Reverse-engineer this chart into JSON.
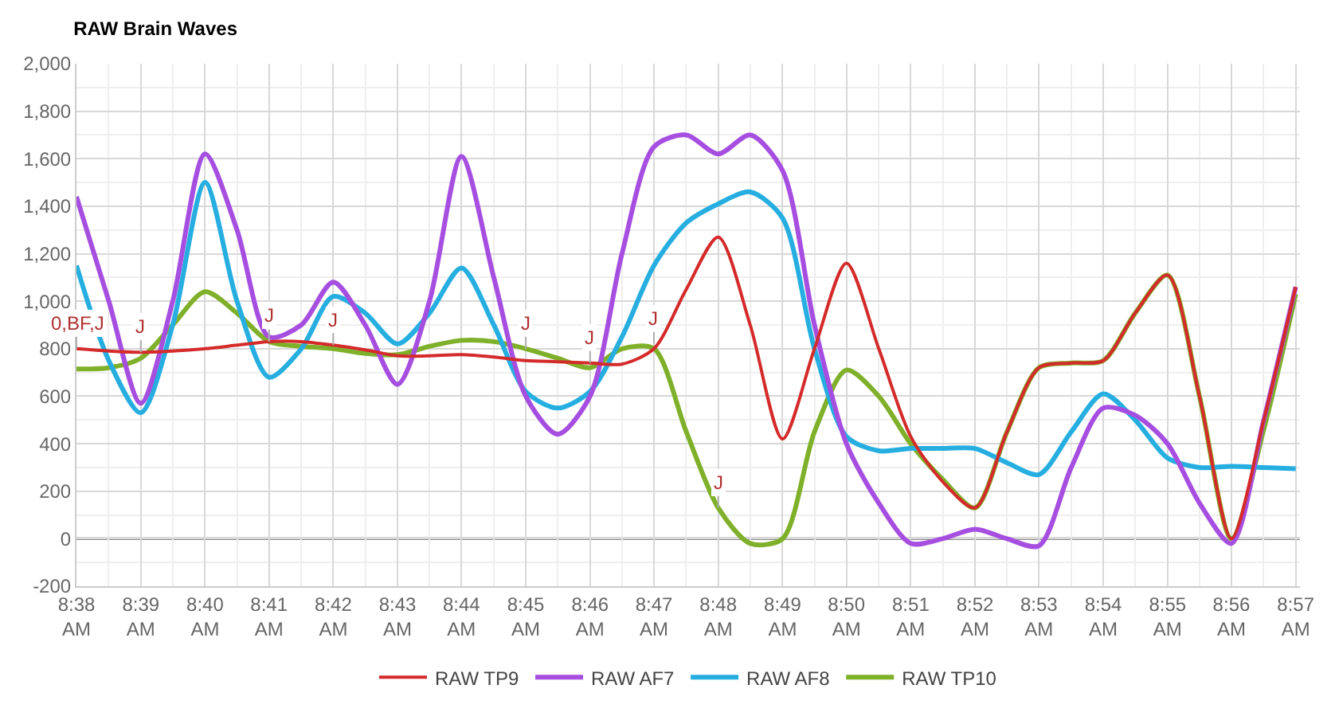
{
  "chart_data": {
    "type": "line",
    "title": "RAW Brain Waves",
    "x": [
      8.6333,
      8.6417,
      8.65,
      8.6583,
      8.6667,
      8.675,
      8.6833,
      8.6917,
      8.7,
      8.7083,
      8.7167,
      8.725,
      8.7333,
      8.7417,
      8.75,
      8.7583,
      8.7667,
      8.775,
      8.7833,
      8.7917,
      8.8,
      8.8083,
      8.8167,
      8.825,
      8.8333,
      8.8417,
      8.85,
      8.8583,
      8.8667,
      8.875,
      8.8833,
      8.8917,
      8.9,
      8.9083,
      8.9167,
      8.925,
      8.9333,
      8.9417,
      8.95
    ],
    "series": [
      {
        "name": "RAW TP9",
        "color": "#d42a2a",
        "values": [
          800,
          790,
          785,
          790,
          800,
          815,
          830,
          830,
          815,
          795,
          770,
          770,
          775,
          765,
          750,
          745,
          740,
          735,
          800,
          1050,
          1270,
          900,
          420,
          800,
          1160,
          800,
          430,
          240,
          130,
          450,
          720,
          740,
          750,
          950,
          1110,
          600,
          0,
          500,
          1060
        ]
      },
      {
        "name": "RAW AF7",
        "color": "#a64ee0",
        "values": [
          1440,
          1000,
          570,
          1000,
          1620,
          1300,
          850,
          900,
          1080,
          900,
          650,
          1000,
          1610,
          1100,
          600,
          440,
          600,
          1200,
          1650,
          1700,
          1620,
          1700,
          1550,
          900,
          400,
          150,
          -20,
          0,
          40,
          0,
          -30,
          300,
          550,
          520,
          400,
          150,
          -20,
          500,
          1060
        ]
      },
      {
        "name": "RAW AF8",
        "color": "#26aee0",
        "values": [
          1150,
          750,
          530,
          900,
          1500,
          1000,
          680,
          800,
          1020,
          950,
          820,
          950,
          1140,
          900,
          620,
          550,
          620,
          850,
          1150,
          1330,
          1410,
          1460,
          1350,
          800,
          430,
          370,
          380,
          380,
          380,
          320,
          270,
          450,
          610,
          500,
          340,
          300,
          305,
          300,
          295
        ]
      },
      {
        "name": "RAW TP10",
        "color": "#7fb02a",
        "values": [
          715,
          720,
          760,
          900,
          1040,
          950,
          830,
          810,
          800,
          780,
          775,
          810,
          835,
          830,
          800,
          760,
          720,
          800,
          800,
          450,
          130,
          -20,
          0,
          450,
          710,
          600,
          400,
          250,
          130,
          450,
          720,
          740,
          750,
          950,
          1110,
          600,
          0,
          460,
          1030
        ]
      }
    ],
    "xlim": [
      8.6333,
      8.9511
    ],
    "xticks": [
      {
        "value": 8.6333,
        "label": "8:38\nAM"
      },
      {
        "value": 8.65,
        "label": "8:39\nAM"
      },
      {
        "value": 8.6667,
        "label": "8:40\nAM"
      },
      {
        "value": 8.6833,
        "label": "8:41\nAM"
      },
      {
        "value": 8.7,
        "label": "8:42\nAM"
      },
      {
        "value": 8.7167,
        "label": "8:43\nAM"
      },
      {
        "value": 8.7333,
        "label": "8:44\nAM"
      },
      {
        "value": 8.75,
        "label": "8:45\nAM"
      },
      {
        "value": 8.7667,
        "label": "8:46\nAM"
      },
      {
        "value": 8.7833,
        "label": "8:47\nAM"
      },
      {
        "value": 8.8,
        "label": "8:48\nAM"
      },
      {
        "value": 8.8167,
        "label": "8:49\nAM"
      },
      {
        "value": 8.8333,
        "label": "8:50\nAM"
      },
      {
        "value": 8.85,
        "label": "8:51\nAM"
      },
      {
        "value": 8.8667,
        "label": "8:52\nAM"
      },
      {
        "value": 8.8833,
        "label": "8:53\nAM"
      },
      {
        "value": 8.9,
        "label": "8:54\nAM"
      },
      {
        "value": 8.9167,
        "label": "8:55\nAM"
      },
      {
        "value": 8.9333,
        "label": "8:56\nAM"
      },
      {
        "value": 8.95,
        "label": "8:57\nAM"
      }
    ],
    "ylim": [
      -200,
      2000
    ],
    "yticks": [
      {
        "value": -200,
        "label": "-200"
      },
      0,
      200,
      400,
      600,
      800,
      {
        "value": 1000,
        "label": "1,000"
      },
      {
        "value": 1200,
        "label": "1,200"
      },
      {
        "value": 1400,
        "label": "1,400"
      },
      {
        "value": 1600,
        "label": "1,600"
      },
      {
        "value": 1800,
        "label": "1,800"
      },
      {
        "value": 2000,
        "label": "2,000"
      }
    ],
    "ref_lines": [
      {
        "axis": "y",
        "value": 0,
        "color": "#666666"
      }
    ],
    "annotations": [
      {
        "text": "0,BF,J",
        "x": 8.6333,
        "y": 800
      },
      {
        "text": "J",
        "x": 8.65,
        "y": 785
      },
      {
        "text": "J",
        "x": 8.6833,
        "y": 830
      },
      {
        "text": "J",
        "x": 8.7,
        "y": 815
      },
      {
        "text": "J",
        "x": 8.75,
        "y": 800
      },
      {
        "text": "J",
        "x": 8.7667,
        "y": 740
      },
      {
        "text": "J",
        "x": 8.7833,
        "y": 820
      },
      {
        "text": "J",
        "x": 8.8,
        "y": 130
      }
    ],
    "grid": true,
    "legend": "bottom",
    "marker": "none",
    "line_style": "solid"
  }
}
